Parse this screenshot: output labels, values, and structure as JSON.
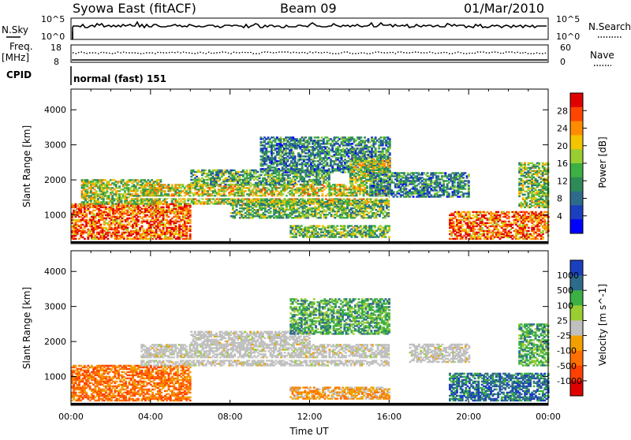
{
  "header": {
    "site": "Syowa East (fitACF)",
    "beam": "Beam 09",
    "date": "01/Mar/2010"
  },
  "status_panels": {
    "nsky_label": "N.Sky",
    "nsky_ticks": [
      "10^5",
      "10^0"
    ],
    "nsearch_label": "N.Search",
    "nsearch_ticks": [
      "10^5",
      "10^0"
    ],
    "freq_label": "Freq.",
    "freq_unit": "[MHz]",
    "freq_ticks": [
      "18",
      "8"
    ],
    "nave_label": "Nave",
    "nave_ticks": [
      "60",
      "0"
    ],
    "cpid_label": "CPID",
    "cpid_value": "normal (fast) 151"
  },
  "chart_data": [
    {
      "type": "heatmap",
      "quantity": "Power",
      "ylabel": "Slant Range [km]",
      "ylim": [
        180,
        4590
      ],
      "yticks": [
        1000,
        2000,
        3000,
        4000
      ],
      "xlim": [
        0,
        24
      ],
      "colorbar_label": "Power [dB]",
      "colorbar_ticks": [
        "28",
        "24",
        "20",
        "16",
        "12",
        "8",
        "4"
      ],
      "colorbar_colors": [
        "#e00000",
        "#ff4500",
        "#ff8c00",
        "#f2c500",
        "#9acd32",
        "#3cb043",
        "#2e8b57",
        "#2e6b8b",
        "#1a3fbf",
        "#0000ff"
      ],
      "echo_regions": [
        {
          "t": [
            0.0,
            6.0
          ],
          "r": [
            300,
            1300
          ],
          "level": 0.85
        },
        {
          "t": [
            0.5,
            4.5
          ],
          "r": [
            1300,
            2000
          ],
          "level": 0.55
        },
        {
          "t": [
            3.5,
            16.0
          ],
          "r": [
            1300,
            1850
          ],
          "level": 0.6
        },
        {
          "t": [
            8.0,
            16.0
          ],
          "r": [
            900,
            1400
          ],
          "level": 0.45
        },
        {
          "t": [
            6.0,
            13.0
          ],
          "r": [
            1850,
            2300
          ],
          "level": 0.4
        },
        {
          "t": [
            9.5,
            16.0
          ],
          "r": [
            2200,
            3200
          ],
          "level": 0.3
        },
        {
          "t": [
            11.0,
            16.0
          ],
          "r": [
            350,
            700
          ],
          "level": 0.45
        },
        {
          "t": [
            14.0,
            16.0
          ],
          "r": [
            1900,
            2600
          ],
          "level": 0.55
        },
        {
          "t": [
            15.0,
            20.0
          ],
          "r": [
            1500,
            2200
          ],
          "level": 0.3
        },
        {
          "t": [
            19.0,
            24.0
          ],
          "r": [
            300,
            1100
          ],
          "level": 0.85
        },
        {
          "t": [
            22.5,
            24.0
          ],
          "r": [
            1200,
            2500
          ],
          "level": 0.5
        }
      ]
    },
    {
      "type": "heatmap",
      "quantity": "Velocity",
      "ylabel": "Slant Range [km]",
      "xlabel": "Time UT",
      "ylim": [
        180,
        4590
      ],
      "yticks": [
        1000,
        2000,
        3000,
        4000
      ],
      "xlim": [
        0,
        24
      ],
      "xticks": [
        "00:00",
        "04:00",
        "08:00",
        "12:00",
        "16:00",
        "20:00",
        "00:00"
      ],
      "colorbar_label": "Velocity [m s^-1]",
      "colorbar_ticks": [
        "1000",
        "500",
        "100",
        "25",
        "-25",
        "-100",
        "-500",
        "-1000"
      ],
      "colorbar_colors": [
        "#1a3fbf",
        "#2e6b8b",
        "#3cb043",
        "#9acd32",
        "#c0c0c0",
        "#f2a000",
        "#ff7000",
        "#ff4000",
        "#e00000"
      ],
      "echo_regions": [
        {
          "t": [
            0.0,
            6.0
          ],
          "r": [
            300,
            1300
          ],
          "level": "-500"
        },
        {
          "t": [
            3.5,
            16.0
          ],
          "r": [
            1300,
            1900
          ],
          "level": "0"
        },
        {
          "t": [
            6.0,
            12.0
          ],
          "r": [
            1900,
            2300
          ],
          "level": "0"
        },
        {
          "t": [
            11.0,
            16.0
          ],
          "r": [
            2200,
            3200
          ],
          "level": "100"
        },
        {
          "t": [
            11.0,
            16.0
          ],
          "r": [
            350,
            700
          ],
          "level": "-100"
        },
        {
          "t": [
            17.0,
            20.0
          ],
          "r": [
            1400,
            1900
          ],
          "level": "0"
        },
        {
          "t": [
            19.0,
            24.0
          ],
          "r": [
            300,
            1100
          ],
          "level": "500"
        },
        {
          "t": [
            22.5,
            24.0
          ],
          "r": [
            1300,
            2500
          ],
          "level": "100"
        }
      ]
    }
  ]
}
